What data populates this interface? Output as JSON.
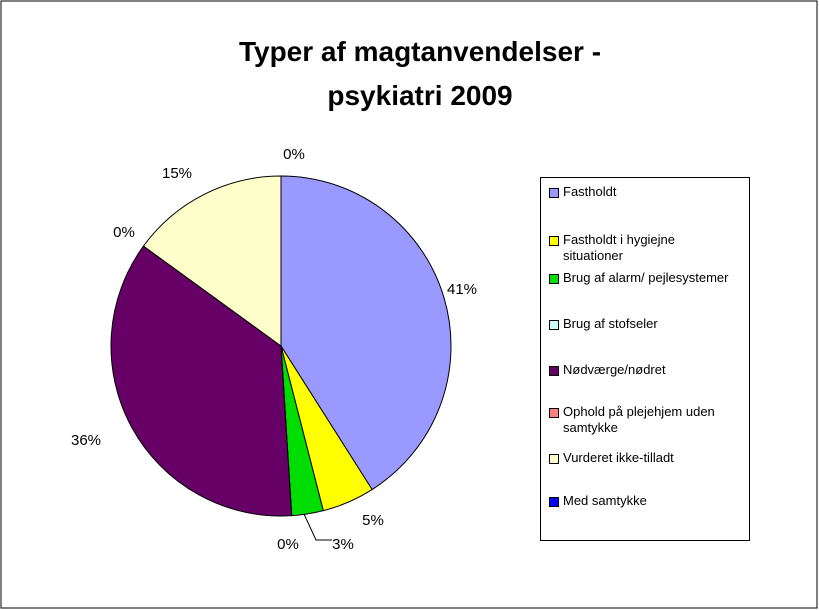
{
  "chart_data": {
    "type": "pie",
    "title": "Typer af magtanvendelser - psykiatri 2009",
    "categories": [
      "Fastholdt",
      "Fastholdt i hygiejne situationer",
      "Brug af alarm/ pejlesystemer",
      "Brug af stofseler",
      " Nødværge/nødret",
      "Ophold på plejehjem uden samtykke",
      "Vurderet ikke-tilladt",
      "Med samtykke"
    ],
    "values": [
      41,
      5,
      3,
      0,
      36,
      0,
      15,
      0
    ],
    "value_labels": [
      "41%",
      "5%",
      "3%",
      "0%",
      "36%",
      "0%",
      "15%",
      "0%"
    ],
    "colors": [
      "#9999ff",
      "#ffff00",
      "#00dd00",
      "#ccffff",
      "#660066",
      "#ff8080",
      "#ffffcc",
      "#0000ff"
    ],
    "legend": "right"
  }
}
